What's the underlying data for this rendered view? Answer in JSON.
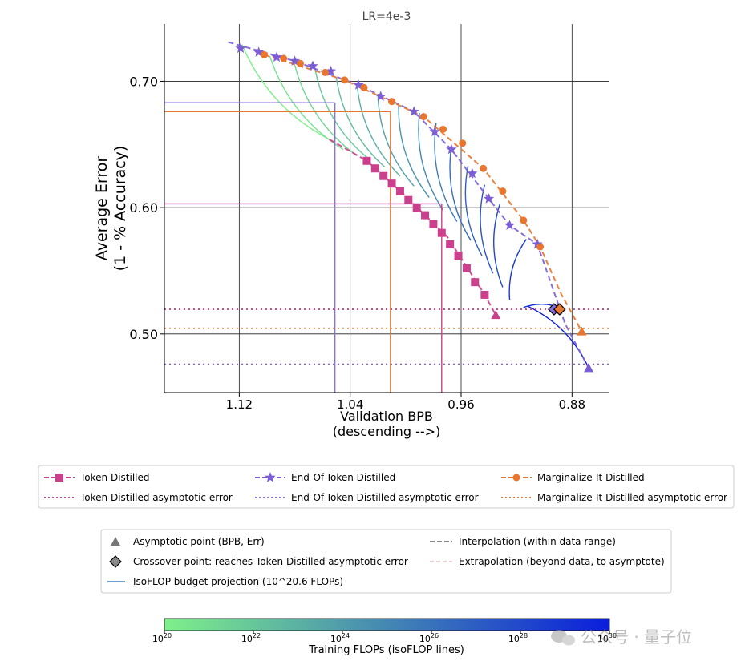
{
  "chart_data": {
    "type": "line",
    "title": "LR=4e-3",
    "xlabel_line1": "Validation BPB",
    "xlabel_line2": "(descending -->)",
    "ylabel_line1": "Average Error",
    "ylabel_line2": "(1 - % Accuracy)",
    "x_reversed": true,
    "xlim": [
      1.174,
      0.853
    ],
    "ylim": [
      0.4536,
      0.7453
    ],
    "x_ticks": [
      {
        "value": 1.12,
        "label": "1.12"
      },
      {
        "value": 1.04,
        "label": "1.04"
      },
      {
        "value": 0.96,
        "label": "0.96"
      },
      {
        "value": 0.88,
        "label": "0.88"
      }
    ],
    "y_ticks": [
      {
        "value": 0.5,
        "label": "0.50"
      },
      {
        "value": 0.6,
        "label": "0.60"
      },
      {
        "value": 0.7,
        "label": "0.70"
      }
    ],
    "grid": true,
    "series": [
      {
        "name": "Token Distilled",
        "color": "#cc3f8c",
        "marker": "square",
        "points": [
          [
            1.028,
            0.637
          ],
          [
            1.022,
            0.631
          ],
          [
            1.016,
            0.625
          ],
          [
            1.01,
            0.619
          ],
          [
            1.004,
            0.613
          ],
          [
            0.998,
            0.606
          ],
          [
            0.992,
            0.6
          ],
          [
            0.986,
            0.594
          ],
          [
            0.98,
            0.587
          ],
          [
            0.974,
            0.58
          ],
          [
            0.968,
            0.571
          ],
          [
            0.962,
            0.562
          ],
          [
            0.956,
            0.552
          ],
          [
            0.95,
            0.541
          ],
          [
            0.943,
            0.531
          ]
        ],
        "curve": [
          [
            1.055,
            0.654
          ],
          [
            1.028,
            0.637
          ],
          [
            1.0,
            0.609
          ],
          [
            0.97,
            0.577
          ],
          [
            0.943,
            0.531
          ],
          [
            0.935,
            0.515
          ]
        ],
        "asymptote": {
          "x": 0.935,
          "y": 0.515
        },
        "asymptotic_error": 0.5195
      },
      {
        "name": "End-Of-Token Distilled",
        "color": "#7b5ed6",
        "marker": "star",
        "points": [
          [
            1.119,
            0.726
          ],
          [
            1.106,
            0.723
          ],
          [
            1.093,
            0.719
          ],
          [
            1.08,
            0.716
          ],
          [
            1.067,
            0.712
          ],
          [
            1.054,
            0.708
          ],
          [
            1.034,
            0.697
          ],
          [
            1.018,
            0.688
          ],
          [
            0.994,
            0.676
          ],
          [
            0.979,
            0.66
          ],
          [
            0.967,
            0.646
          ],
          [
            0.952,
            0.627
          ],
          [
            0.94,
            0.607
          ],
          [
            0.925,
            0.586
          ],
          [
            0.905,
            0.571
          ]
        ],
        "curve": [
          [
            1.128,
            0.731
          ],
          [
            1.08,
            0.716
          ],
          [
            1.034,
            0.697
          ],
          [
            0.994,
            0.676
          ],
          [
            0.967,
            0.646
          ],
          [
            0.94,
            0.607
          ],
          [
            0.925,
            0.586
          ],
          [
            0.905,
            0.571
          ],
          [
            0.885,
            0.508
          ],
          [
            0.868,
            0.473
          ]
        ],
        "asymptote": {
          "x": 0.868,
          "y": 0.473
        },
        "asymptotic_error": 0.476
      },
      {
        "name": "Marginalize-It Distilled",
        "color": "#e8762e",
        "marker": "circle",
        "points": [
          [
            1.102,
            0.721
          ],
          [
            1.088,
            0.718
          ],
          [
            1.076,
            0.714
          ],
          [
            1.058,
            0.707
          ],
          [
            1.044,
            0.701
          ],
          [
            1.03,
            0.695
          ],
          [
            1.01,
            0.684
          ],
          [
            0.987,
            0.672
          ],
          [
            0.973,
            0.662
          ],
          [
            0.959,
            0.651
          ],
          [
            0.944,
            0.631
          ],
          [
            0.93,
            0.613
          ],
          [
            0.915,
            0.59
          ],
          [
            0.903,
            0.569
          ]
        ],
        "curve": [
          [
            1.108,
            0.723
          ],
          [
            1.044,
            0.701
          ],
          [
            0.987,
            0.672
          ],
          [
            0.944,
            0.631
          ],
          [
            0.915,
            0.59
          ],
          [
            0.903,
            0.569
          ],
          [
            0.888,
            0.532
          ],
          [
            0.873,
            0.502
          ]
        ],
        "asymptote": {
          "x": 0.873,
          "y": 0.502
        },
        "asymptotic_error": 0.5045
      }
    ],
    "isoflop_lines": [
      [
        [
          1.118,
          0.729
        ],
        [
          1.055,
          0.654
        ]
      ],
      [
        [
          1.098,
          0.72
        ],
        [
          1.045,
          0.646
        ]
      ],
      [
        [
          1.08,
          0.713
        ],
        [
          1.035,
          0.641
        ]
      ],
      [
        [
          1.065,
          0.708
        ],
        [
          1.026,
          0.638
        ]
      ],
      [
        [
          1.05,
          0.703
        ],
        [
          1.015,
          0.632
        ]
      ],
      [
        [
          1.035,
          0.697
        ],
        [
          1.004,
          0.625
        ]
      ],
      [
        [
          1.02,
          0.69
        ],
        [
          0.994,
          0.617
        ]
      ],
      [
        [
          1.005,
          0.683
        ],
        [
          0.983,
          0.608
        ]
      ],
      [
        [
          0.99,
          0.675
        ],
        [
          0.973,
          0.598
        ]
      ],
      [
        [
          0.978,
          0.667
        ],
        [
          0.963,
          0.589
        ]
      ],
      [
        [
          0.967,
          0.648
        ],
        [
          0.953,
          0.574
        ]
      ],
      [
        [
          0.955,
          0.633
        ],
        [
          0.945,
          0.562
        ]
      ],
      [
        [
          0.943,
          0.618
        ],
        [
          0.937,
          0.548
        ]
      ],
      [
        [
          0.932,
          0.603
        ],
        [
          0.93,
          0.537
        ]
      ],
      [
        [
          0.913,
          0.575
        ],
        [
          0.925,
          0.527
        ]
      ],
      [
        [
          0.889,
          0.521
        ],
        [
          0.915,
          0.521
        ]
      ],
      [
        [
          0.868,
          0.473
        ],
        [
          0.912,
          0.522
        ]
      ]
    ],
    "isoflop_color_range": [
      "#7ef08a",
      "#0a1edc"
    ],
    "reference_lines": [
      {
        "color": "#8a6fe0",
        "y": 0.683,
        "x": 1.051
      },
      {
        "color": "#e8762e",
        "y": 0.676,
        "x": 1.011
      },
      {
        "color": "#cc3f8c",
        "y": 0.603,
        "x": 0.974
      }
    ],
    "crossover_points": [
      {
        "x": 0.893,
        "y": 0.5195,
        "color": "#8a6fe0"
      },
      {
        "x": 0.889,
        "y": 0.5195,
        "color": "#e8762e"
      }
    ],
    "colorbar": {
      "label": "Training FLOPs (isoFLOP lines)",
      "tick_bases": [
        "10",
        "10",
        "10",
        "10",
        "10",
        "10"
      ],
      "tick_exponents": [
        "20",
        "22",
        "24",
        "26",
        "28",
        "30"
      ],
      "colors": [
        "#7ef08a",
        "#0a1edc"
      ]
    }
  },
  "legend1": [
    {
      "label": "Token Distilled",
      "color": "#cc3f8c",
      "style": "dashed",
      "marker": "square"
    },
    {
      "label": "End-Of-Token Distilled",
      "color": "#7b5ed6",
      "style": "dashed",
      "marker": "star"
    },
    {
      "label": "Marginalize-It Distilled",
      "color": "#e8762e",
      "style": "dashed",
      "marker": "circle"
    },
    {
      "label": "Token Distilled asymptotic error",
      "color": "#cc3f8c",
      "style": "dotted",
      "marker": "none"
    },
    {
      "label": "End-Of-Token Distilled asymptotic error",
      "color": "#8a6fe0",
      "style": "dotted",
      "marker": "none"
    },
    {
      "label": "Marginalize-It Distilled asymptotic error",
      "color": "#e8762e",
      "style": "dotted",
      "marker": "none"
    }
  ],
  "legend2": [
    {
      "label": "Asymptotic point (BPB, Err)",
      "marker": "triangle",
      "color": "#777777"
    },
    {
      "label": "Interpolation (within data range)",
      "marker": "dashline",
      "color": "#888888"
    },
    {
      "label": "Crossover point: reaches Token Distilled asymptotic error",
      "marker": "diamond",
      "color": "#888888"
    },
    {
      "label": "Extrapolation (beyond data, to asymptote)",
      "marker": "faintdash",
      "color": "#d9b0b0"
    },
    {
      "label": "IsoFLOP budget projection (10^20.6 FLOPs)",
      "marker": "line",
      "color": "#3a7ec0"
    }
  ],
  "watermark": "公众号 · 量子位"
}
